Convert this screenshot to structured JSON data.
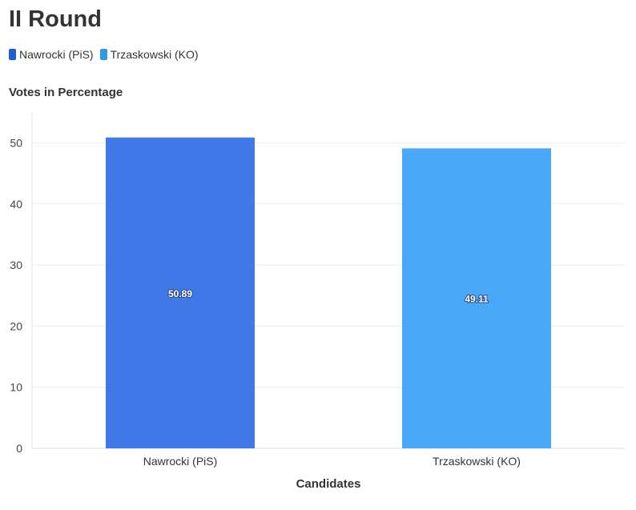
{
  "chart_data": {
    "type": "bar",
    "title": "II Round",
    "ylabel": "Votes in Percentage",
    "xlabel": "Candidates",
    "categories": [
      "Nawrocki (PiS)",
      "Trzaskowski (KO)"
    ],
    "values": [
      50.89,
      49.11
    ],
    "colors": [
      "#4178e8",
      "#4aa8fb"
    ],
    "legend_colors": [
      "#1f5fd6",
      "#2f97ee"
    ],
    "ylim": [
      0,
      55
    ],
    "yticks": [
      0,
      10,
      20,
      30,
      40,
      50
    ],
    "grid": true,
    "legend_position": "top-left"
  }
}
